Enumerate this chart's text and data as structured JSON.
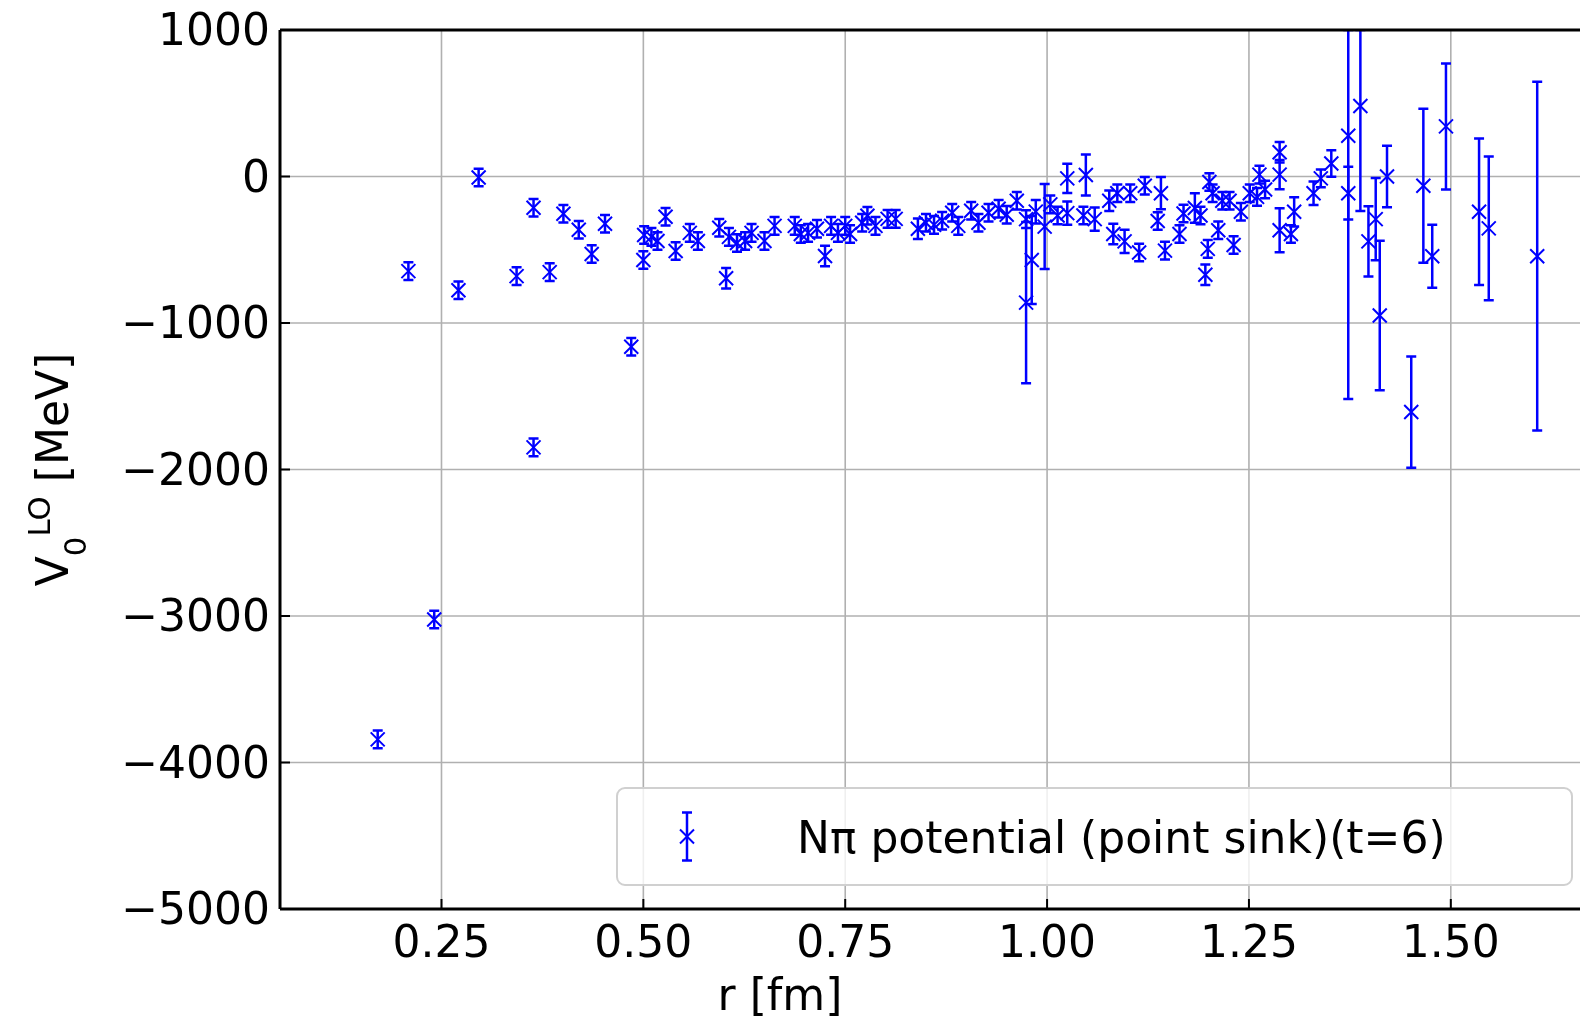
{
  "chart_data": {
    "type": "scatter",
    "xlabel": "r [fm]",
    "ylabel": "V$_{0}$$^{LO}$ [MeV]",
    "xlim": [
      0.05,
      1.66
    ],
    "xticks": [
      0.25,
      {
        "value": 0.5,
        "label": "0.50"
      },
      0.75,
      {
        "value": 1.0,
        "label": "1.00"
      },
      1.25,
      {
        "value": 1.5,
        "label": "1.50"
      }
    ],
    "ylim": [
      -5000,
      1000
    ],
    "yticks": [
      -5000,
      -4000,
      -3000,
      -2000,
      -1000,
      0,
      1000
    ],
    "grid": true,
    "legend": "bottom right",
    "marker": "cross",
    "series": [
      {
        "name": "Nπ potential (point sink)(t=6)",
        "color": "#0000ff",
        "x": [
          0.171,
          0.209,
          0.241,
          0.271,
          0.296,
          0.343,
          0.364,
          0.364,
          0.384,
          0.401,
          0.42,
          0.436,
          0.4525,
          0.485,
          0.5,
          0.501,
          0.51,
          0.5175,
          0.5275,
          0.54,
          0.5575,
          0.5675,
          0.594,
          0.6025,
          0.606,
          0.616,
          0.626,
          0.634,
          0.65,
          0.6625,
          0.6875,
          0.695,
          0.704,
          0.715,
          0.725,
          0.7325,
          0.741,
          0.75,
          0.756,
          0.771,
          0.7775,
          0.7875,
          0.8025,
          0.8125,
          0.84,
          0.85,
          0.86,
          0.87,
          0.8825,
          0.89,
          0.906,
          0.915,
          0.9275,
          0.94,
          0.95,
          0.9625,
          0.974,
          0.981,
          0.974,
          0.986,
          0.997,
          1.004,
          1.013,
          1.025,
          1.025,
          1.048,
          1.045,
          1.059,
          1.077,
          1.087,
          1.096,
          1.082,
          1.103,
          1.114,
          1.121,
          1.141,
          1.137,
          1.146,
          1.164,
          1.169,
          1.183,
          1.19,
          1.196,
          1.199,
          1.201,
          1.205,
          1.212,
          1.217,
          1.226,
          1.231,
          1.24,
          1.251,
          1.26,
          1.263,
          1.27,
          1.288,
          1.288,
          1.288,
          1.306,
          1.302,
          1.33,
          1.339,
          1.352,
          1.373,
          1.373,
          1.388,
          1.398,
          1.407,
          1.412,
          1.421,
          1.451,
          1.466,
          1.477,
          1.494,
          1.535,
          1.547,
          1.607
        ],
        "values": [
          -3842,
          -646,
          -3024,
          -777,
          -7,
          -680,
          -213,
          -1849,
          -653,
          -254,
          -364,
          -529,
          -323,
          -1162,
          -570,
          -399,
          -412,
          -440,
          -275,
          -509,
          -385,
          -440,
          -350,
          -694,
          -412,
          -454,
          -440,
          -385,
          -440,
          -337,
          -337,
          -392,
          -385,
          -357,
          -543,
          -337,
          -385,
          -337,
          -392,
          -316,
          -268,
          -337,
          -289,
          -289,
          -357,
          -316,
          -330,
          -302,
          -247,
          -337,
          -234,
          -316,
          -247,
          -220,
          -261,
          -165,
          -861,
          -570,
          -291,
          -240,
          -342,
          -190,
          -266,
          -13,
          -250,
          10,
          -266,
          -291,
          -165,
          -114,
          -443,
          -392,
          -114,
          -519,
          -63,
          -114,
          -304,
          -506,
          -392,
          -253,
          -215,
          -266,
          -671,
          -494,
          -38,
          -114,
          -367,
          -165,
          -165,
          -468,
          -241,
          -114,
          -139,
          13,
          -89,
          165,
          13,
          -367,
          -241,
          -392,
          -114,
          -13,
          89,
          278,
          -114,
          481,
          -443,
          -291,
          -949,
          0,
          -1608,
          -63,
          -544,
          342,
          -241,
          -354,
          -544
        ],
        "errors": [
          60,
          60,
          60,
          60,
          60,
          60,
          60,
          60,
          60,
          60,
          60,
          60,
          60,
          60,
          60,
          60,
          60,
          60,
          60,
          60,
          60,
          60,
          60,
          70,
          60,
          60,
          60,
          60,
          60,
          60,
          60,
          60,
          60,
          60,
          70,
          60,
          60,
          60,
          60,
          60,
          60,
          60,
          60,
          60,
          70,
          60,
          60,
          60,
          60,
          60,
          60,
          60,
          60,
          60,
          60,
          60,
          550,
          300,
          60,
          80,
          290,
          60,
          60,
          100,
          80,
          140,
          60,
          80,
          70,
          60,
          80,
          70,
          60,
          60,
          60,
          110,
          60,
          60,
          60,
          60,
          100,
          60,
          70,
          60,
          60,
          60,
          60,
          60,
          60,
          60,
          60,
          60,
          60,
          60,
          60,
          70,
          100,
          150,
          100,
          60,
          80,
          60,
          90,
          [
            -1519,
            1000
          ],
          180,
          [
            -235,
            1000
          ],
          240,
          280,
          510,
          210,
          380,
          525,
          215,
          430,
          500,
          490,
          1190
        ]
      }
    ]
  }
}
